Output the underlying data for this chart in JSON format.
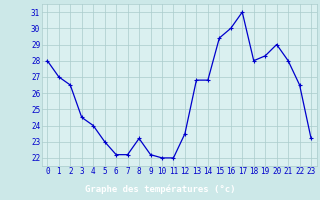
{
  "x": [
    0,
    1,
    2,
    3,
    4,
    5,
    6,
    7,
    8,
    9,
    10,
    11,
    12,
    13,
    14,
    15,
    16,
    17,
    18,
    19,
    20,
    21,
    22,
    23
  ],
  "y": [
    28.0,
    27.0,
    26.5,
    24.5,
    24.0,
    23.0,
    22.2,
    22.2,
    23.2,
    22.2,
    22.0,
    22.0,
    23.5,
    26.8,
    26.8,
    29.4,
    30.0,
    31.0,
    28.0,
    28.3,
    29.0,
    28.0,
    26.5,
    23.2
  ],
  "line_color": "#0000cc",
  "marker": "+",
  "marker_size": 3,
  "bg_color": "#cce8e8",
  "plot_bg_color": "#daf0f0",
  "grid_color": "#aacccc",
  "xlabel": "Graphe des températures (°c)",
  "xlabel_color": "#ffffff",
  "xlabel_bg": "#0000cc",
  "ylabel_ticks": [
    22,
    23,
    24,
    25,
    26,
    27,
    28,
    29,
    30,
    31
  ],
  "xtick_labels": [
    "0",
    "1",
    "2",
    "3",
    "4",
    "5",
    "6",
    "7",
    "8",
    "9",
    "10",
    "11",
    "12",
    "13",
    "14",
    "15",
    "16",
    "17",
    "18",
    "19",
    "20",
    "21",
    "22",
    "23"
  ],
  "ylim": [
    21.5,
    31.5
  ],
  "xlim": [
    -0.5,
    23.5
  ],
  "tick_fontsize": 5.5,
  "label_fontsize": 6.5
}
